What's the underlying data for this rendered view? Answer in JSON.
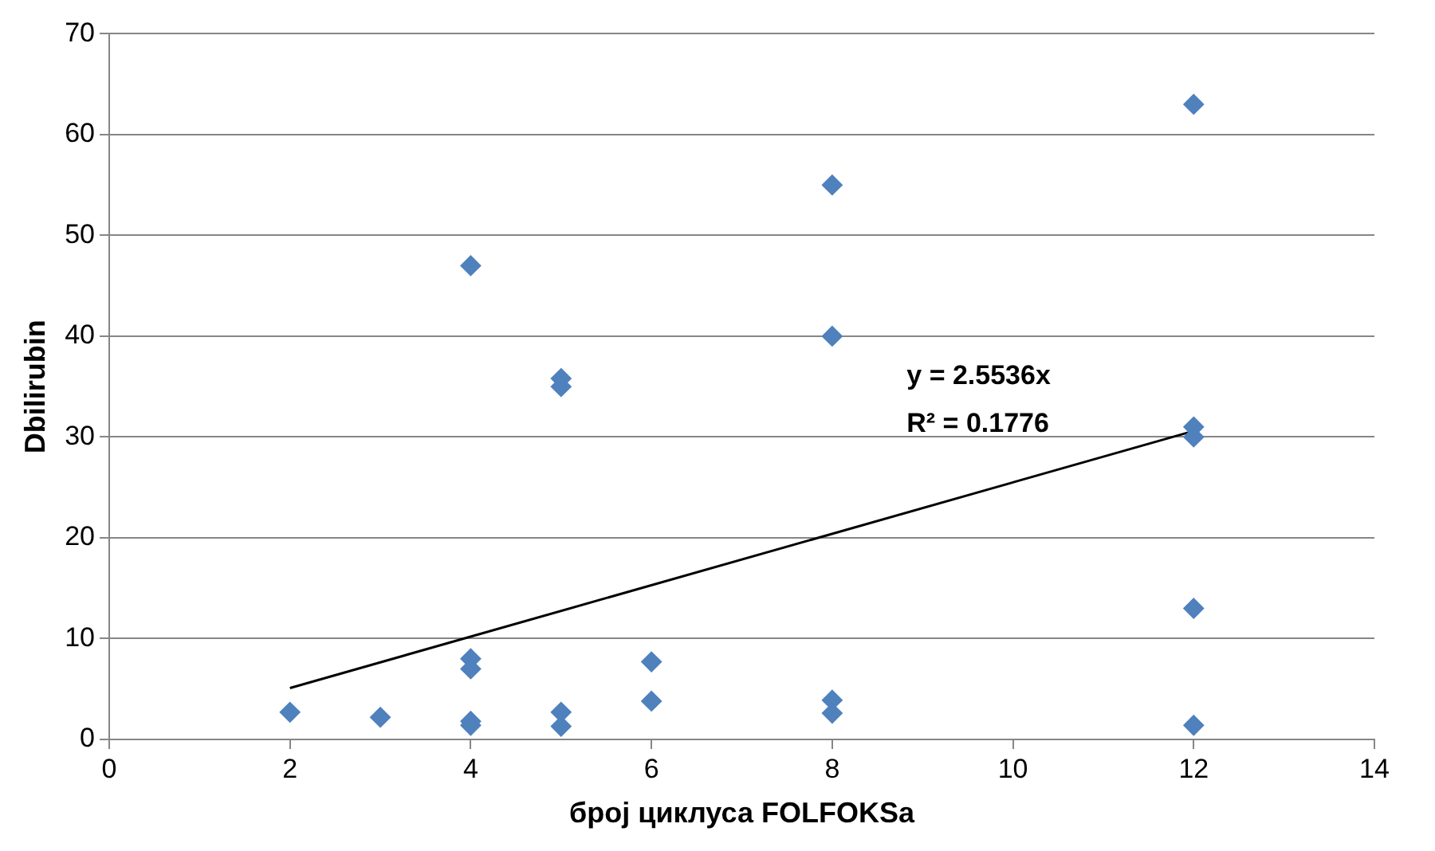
{
  "chart_data": {
    "type": "scatter",
    "xlabel": "број циклуса FOLFOKSa",
    "ylabel": "Dbilirubin",
    "xlim": [
      0,
      14
    ],
    "xticks": [
      0,
      2,
      4,
      6,
      8,
      10,
      12,
      14
    ],
    "ylim": [
      0,
      70
    ],
    "yticks": [
      0,
      10,
      20,
      30,
      40,
      50,
      60,
      70
    ],
    "grid": "y",
    "legend": false,
    "marker": "diamond",
    "series": [
      {
        "type": "scatter",
        "color": "#4f81bd",
        "x": [
          2,
          3,
          4,
          4,
          4,
          4,
          4,
          5,
          5,
          5,
          5,
          6,
          6,
          8,
          8,
          8,
          8,
          12,
          12,
          12,
          12,
          12
        ],
        "values": [
          2.7,
          2.2,
          8,
          7,
          1.8,
          1.4,
          47,
          35.8,
          35,
          2.7,
          1.3,
          7.7,
          3.8,
          55,
          40,
          3.9,
          2.6,
          63,
          31,
          30,
          13,
          1.4
        ]
      },
      {
        "type": "line",
        "color": "#000000",
        "marker": "none",
        "x": [
          2,
          12
        ],
        "values": [
          5.1,
          30.6
        ]
      }
    ],
    "annotations": [
      "y = 2.5536x",
      "R² = 0.1776"
    ]
  }
}
